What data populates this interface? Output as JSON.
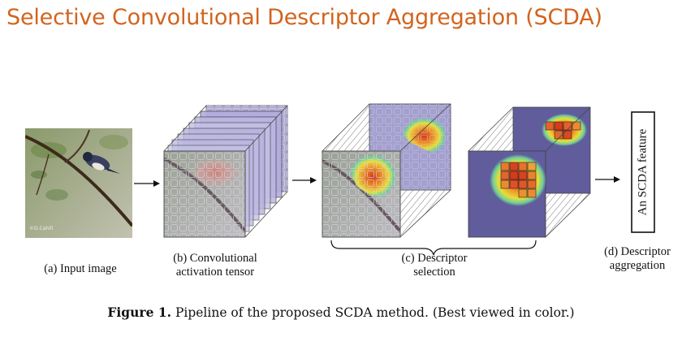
{
  "title": "Selective Convolutional Descriptor Aggregation (SCDA)",
  "stages": {
    "a": {
      "line1": "(a) Input image"
    },
    "b": {
      "line1": "(b) Convolutional",
      "line2": "activation tensor"
    },
    "c": {
      "line1": "(c) Descriptor",
      "line2": "selection"
    },
    "d": {
      "line1": "(d) Descriptor",
      "line2": "aggregation"
    }
  },
  "feature_box_text": "An SCDA feature",
  "watermark": "©D.Cahill",
  "caption": {
    "label": "Figure 1.",
    "text": " Pipeline of the proposed SCDA method. (Best viewed in color.)"
  },
  "colors": {
    "title": "#d2641e",
    "map_bg": "#5f5a9a",
    "hot": "#d9401c"
  }
}
